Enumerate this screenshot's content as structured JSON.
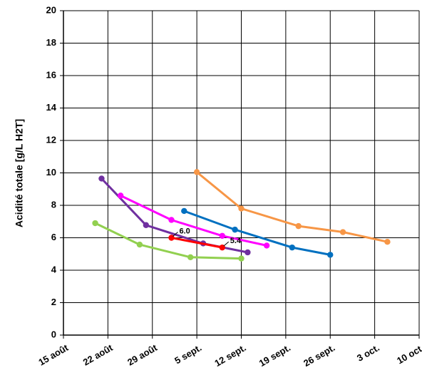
{
  "chart_data": {
    "type": "line",
    "title": "",
    "xlabel": "",
    "ylabel": "Acidité totale [g/L H2T]",
    "ylim": [
      0,
      20
    ],
    "yticks": [
      0,
      2,
      4,
      6,
      8,
      10,
      12,
      14,
      16,
      18,
      20
    ],
    "xticks": [
      "15 août",
      "22 août",
      "29 août",
      "5 sept.",
      "12 sept.",
      "19 sept.",
      "26 sept.",
      "3 oct.",
      "10 oct."
    ],
    "xlim": [
      "2023-08-15",
      "2023-10-10"
    ],
    "grid": true,
    "legend": "none",
    "series": [
      {
        "color": "#7030A0",
        "points": [
          [
            "2023-08-21",
            9.65
          ],
          [
            "2023-08-28",
            6.78
          ],
          [
            "2023-09-06",
            5.65
          ],
          [
            "2023-09-13",
            5.1
          ]
        ]
      },
      {
        "color": "#FF00FF",
        "points": [
          [
            "2023-08-24",
            8.6
          ],
          [
            "2023-09-01",
            7.1
          ],
          [
            "2023-09-09",
            6.12
          ],
          [
            "2023-09-16",
            5.52
          ]
        ]
      },
      {
        "color": "#92D050",
        "points": [
          [
            "2023-08-20",
            6.9
          ],
          [
            "2023-08-27",
            5.58
          ],
          [
            "2023-09-04",
            4.8
          ],
          [
            "2023-09-12",
            4.72
          ]
        ]
      },
      {
        "color": "#0070C0",
        "points": [
          [
            "2023-09-03",
            7.65
          ],
          [
            "2023-09-11",
            6.5
          ],
          [
            "2023-09-20",
            5.4
          ],
          [
            "2023-09-26",
            4.95
          ]
        ]
      },
      {
        "color": "#F79646",
        "points": [
          [
            "2023-09-05",
            10.05
          ],
          [
            "2023-09-12",
            7.8
          ],
          [
            "2023-09-21",
            6.72
          ],
          [
            "2023-09-28",
            6.35
          ],
          [
            "2023-10-05",
            5.75
          ]
        ]
      },
      {
        "color": "#FF0000",
        "points": [
          [
            "2023-09-01",
            6.0
          ],
          [
            "2023-09-09",
            5.4
          ]
        ]
      }
    ],
    "annotations": [
      {
        "text": "6.0",
        "x": "2023-09-01",
        "y": 6.0
      },
      {
        "text": "5.4",
        "x": "2023-09-09",
        "y": 5.4
      }
    ]
  }
}
